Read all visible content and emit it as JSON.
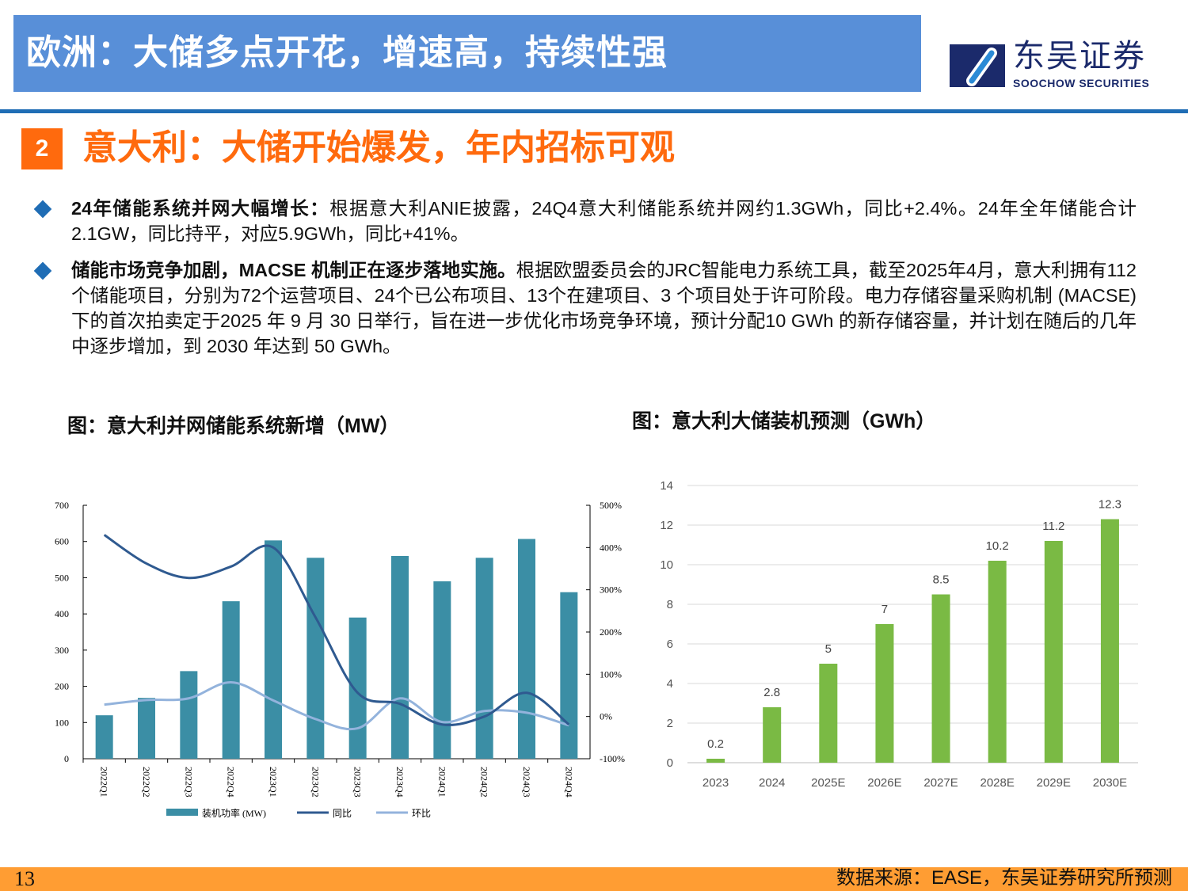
{
  "header": {
    "title": "欧洲：大储多点开花，增速高，持续性强"
  },
  "logo": {
    "cn": "东吴证券",
    "en": "SOOCHOW SECURITIES"
  },
  "section": {
    "number": "2",
    "title": "意大利：大储开始爆发，年内招标可观"
  },
  "bullets": [
    {
      "bold": "24年储能系统并网大幅增长：",
      "text": "根据意大利ANIE披露，24Q4意大利储能系统并网约1.3GWh，同比+2.4%。24年全年储能合计2.1GW，同比持平，对应5.9GWh，同比+41%。"
    },
    {
      "bold": "储能市场竞争加剧，MACSE 机制正在逐步落地实施。",
      "text": "根据欧盟委员会的JRC智能电力系统工具，截至2025年4月，意大利拥有112个储能项目，分别为72个运营项目、24个已公布项目、13个在建项目、3 个项目处于许可阶段。电力存储容量采购机制 (MACSE)下的首次拍卖定于2025 年 9 月 30 日举行，旨在进一步优化市场竞争环境，预计分配10 GWh 的新存储容量，并计划在随后的几年中逐步增加，到 2030 年达到 50 GWh。"
    }
  ],
  "chart_data": [
    {
      "type": "bar",
      "title": "图：意大利并网储能系统新增（MW）",
      "categories": [
        "2022Q1",
        "2022Q2",
        "2022Q3",
        "2022Q4",
        "2023Q1",
        "2023Q2",
        "2023Q3",
        "2023Q4",
        "2024Q1",
        "2024Q2",
        "2024Q3",
        "2024Q4"
      ],
      "series": [
        {
          "name": "装机功率 (MW)",
          "type": "bar",
          "axis": "left",
          "color": "#3b8ea5",
          "values": [
            120,
            168,
            242,
            435,
            603,
            555,
            390,
            560,
            490,
            555,
            607,
            460
          ]
        },
        {
          "name": "同比",
          "type": "line",
          "axis": "right",
          "color": "#2f5a90",
          "values": [
            430,
            362,
            328,
            355,
            400,
            235,
            56,
            30,
            -19,
            0,
            56,
            -19
          ]
        },
        {
          "name": "环比",
          "type": "line",
          "axis": "right",
          "color": "#93b3dc",
          "values": [
            28,
            39,
            43,
            81,
            38,
            -6,
            -28,
            43,
            -13,
            13,
            9,
            -21
          ]
        }
      ],
      "ylim": [
        0,
        700
      ],
      "yticks": [
        0,
        100,
        200,
        300,
        400,
        500,
        600,
        700
      ],
      "y2lim": [
        -100,
        500
      ],
      "y2ticks": [
        "-100%",
        "0%",
        "100%",
        "200%",
        "300%",
        "400%",
        "500%"
      ],
      "legend": "bottom",
      "grid": false
    },
    {
      "type": "bar",
      "title": "图：意大利大储装机预测（GWh）",
      "categories": [
        "2023",
        "2024",
        "2025E",
        "2026E",
        "2027E",
        "2028E",
        "2029E",
        "2030E"
      ],
      "values": [
        0.2,
        2.8,
        5,
        7,
        8.5,
        10.2,
        11.2,
        12.3
      ],
      "labels": [
        "0.2",
        "2.8",
        "5",
        "7",
        "8.5",
        "10.2",
        "11.2",
        "12.3"
      ],
      "color": "#7aba44",
      "ylim": [
        0,
        14
      ],
      "yticks": [
        0,
        2,
        4,
        6,
        8,
        10,
        12,
        14
      ],
      "grid": true
    }
  ],
  "footer": {
    "page": "13",
    "source": "数据来源：EASE，东吴证券研究所预测"
  }
}
